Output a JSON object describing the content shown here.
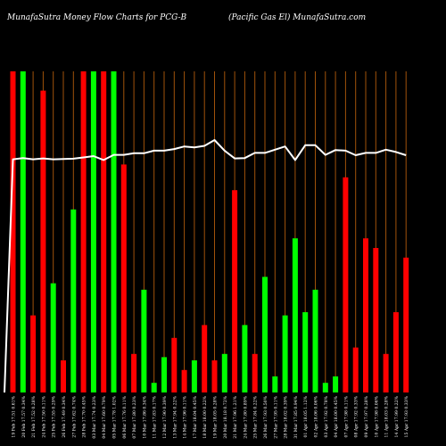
{
  "header": {
    "left_title": "MunafaSutra  Money Flow  Charts for PCG-B",
    "right_title": "(Pacific Gas El) MunafaSutra.com"
  },
  "colors": {
    "background": "#000000",
    "up_bar": "#00ff00",
    "down_bar": "#ff0000",
    "gridline": "#a0520a",
    "line": "#ffffff",
    "label_text": "#ffffff"
  },
  "chart_data": {
    "type": "bar",
    "title": "MunafaSutra  Money Flow  Charts for PCG-B",
    "subtitle": "(Pacific Gas El) MunafaSutra.com",
    "xlabel": "",
    "ylabel": "",
    "ylim": [
      0,
      100
    ],
    "grid": true,
    "legend": "none",
    "categories": [
      "19 Feb 17.51 0.61%",
      "20 Feb 17.57 0.34%",
      "21 Feb 17.52 0.28%",
      "24 Feb 17.50 0.11%",
      "25 Feb 17.55 0.29%",
      "26 Feb 17.49 0.34%",
      "27 Feb 17.62 0.74%",
      "28 Feb 17.70 0.45%",
      "03 Mar 17.74 0.23%",
      "04 Mar 17.60 0.79%",
      "05 Mar 17.78 1.02%",
      "06 Mar 17.76 0.11%",
      "07 Mar 17.80 0.23%",
      "10 Mar 17.86 0.34%",
      "11 Mar 17.83 0.17%",
      "12 Mar 17.90 0.39%",
      "13 Mar 17.94 0.22%",
      "14 Mar 17.96 0.11%",
      "17 Mar 18.04 0.45%",
      "18 Mar 18.00 0.22%",
      "19 Mar 18.05 0.28%",
      "20 Mar 18.18 0.72%",
      "21 Mar 17.96 1.21%",
      "24 Mar 17.80 0.89%",
      "25 Mar 17.84 0.22%",
      "26 Mar 17.93 0.50%",
      "27 Mar 17.95 0.11%",
      "28 Mar 18.02 0.39%",
      "31 Mar 17.85 0.94%",
      "01 Apr 18.05 1.12%",
      "02 Apr 18.06 0.06%",
      "03 Apr 17.92 0.78%",
      "04 Apr 18.00 0.45%",
      "07 Apr 17.98 0.11%",
      "08 Apr 17.92 0.33%",
      "09 Apr 17.97 0.28%",
      "10 Apr 17.98 0.06%",
      "11 Apr 18.03 0.28%",
      "14 Apr 17.99 0.22%",
      "15 Apr 17.93 0.33%"
    ],
    "series": [
      {
        "values": [
          100,
          100,
          24,
          94,
          34,
          10,
          57,
          100,
          100,
          100,
          100,
          71,
          12,
          32,
          3,
          11,
          17,
          7,
          10,
          21,
          10,
          12,
          63,
          21,
          12,
          36,
          5,
          24,
          48,
          25,
          32,
          3,
          5,
          67,
          14,
          48,
          45,
          12,
          25,
          42
        ],
        "direction": [
          "down",
          "up",
          "down",
          "down",
          "up",
          "down",
          "up",
          "down",
          "up",
          "down",
          "up",
          "down",
          "down",
          "up",
          "up",
          "up",
          "down",
          "down",
          "up",
          "down",
          "down",
          "up",
          "down",
          "up",
          "down",
          "up",
          "up",
          "up",
          "up",
          "up",
          "up",
          "up",
          "up",
          "down",
          "down",
          "down",
          "down",
          "down",
          "down",
          "down"
        ]
      },
      {
        "values": [
          72.6,
          73.0,
          72.6,
          72.9,
          72.6,
          72.7,
          72.8,
          73.2,
          73.6,
          72.4,
          74.0,
          74.0,
          74.5,
          74.5,
          75.3,
          75.3,
          75.8,
          76.6,
          76.3,
          76.8,
          78.6,
          75.3,
          72.9,
          73.0,
          74.6,
          74.6,
          75.6,
          76.6,
          72.4,
          77.0,
          77.0,
          74.0,
          75.5,
          75.3,
          73.9,
          74.6,
          74.6,
          75.6,
          74.9,
          73.9
        ]
      }
    ]
  }
}
